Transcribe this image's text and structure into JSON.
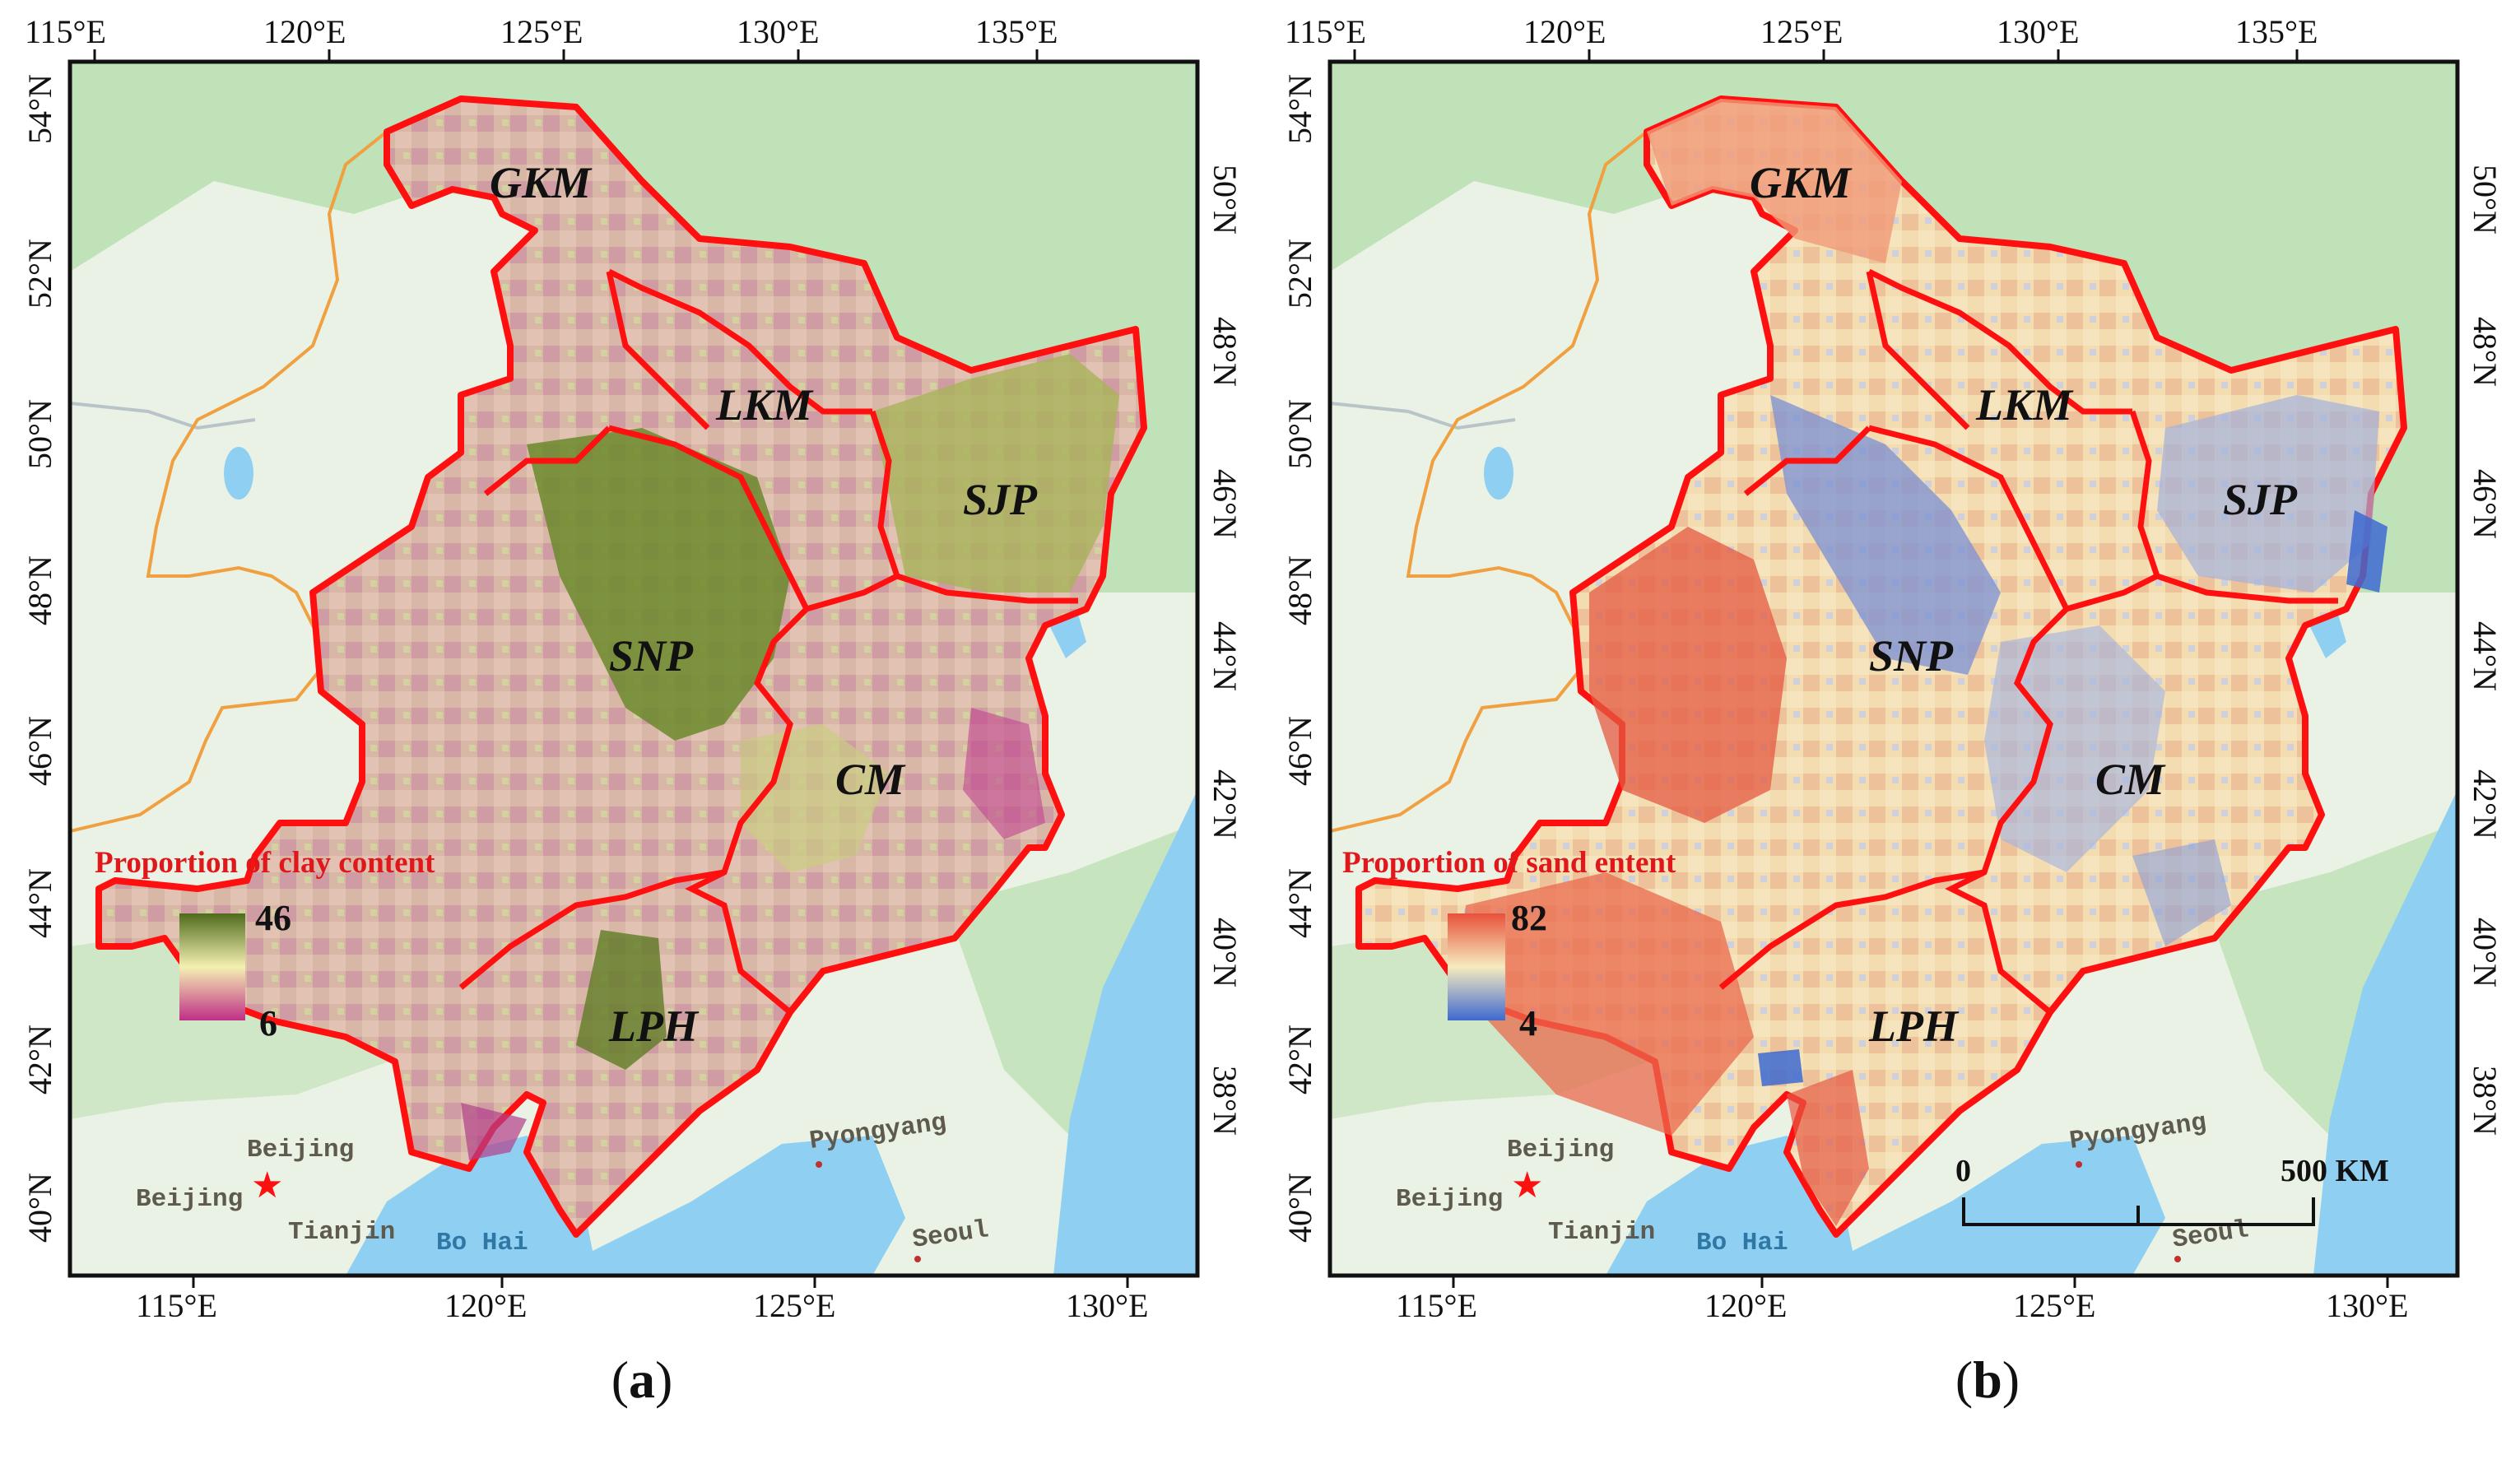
{
  "panels": [
    {
      "id": "a",
      "caption_letter": "a",
      "top_ticks": [
        "115°E",
        "120°E",
        "125°E",
        "130°E",
        "135°E"
      ],
      "bottom_ticks": [
        "115°E",
        "120°E",
        "125°E",
        "130°E"
      ],
      "left_ticks": [
        "54°N",
        "52°N",
        "50°N",
        "48°N",
        "46°N",
        "44°N",
        "42°N",
        "40°N"
      ],
      "right_ticks": [
        "50°N",
        "48°N",
        "46°N",
        "44°N",
        "42°N",
        "40°N",
        "38°N"
      ],
      "regions": [
        "GKM",
        "LKM",
        "SJP",
        "SNP",
        "CM",
        "LPH"
      ],
      "legend": {
        "title": "Proportion of clay content",
        "max": "46",
        "min": "6",
        "color_high": "#4f6b1c",
        "color_mid": "#f4f0b2",
        "color_low": "#c02f86"
      },
      "labels": {
        "beijing_1": "Beijing",
        "beijing_2": "Beijing",
        "tianjin": "Tianjin",
        "pyongyang": "Pyongyang",
        "seoul": "Seoul",
        "bohai": "Bo Hai"
      }
    },
    {
      "id": "b",
      "caption_letter": "b",
      "top_ticks": [
        "115°E",
        "120°E",
        "125°E",
        "130°E",
        "135°E"
      ],
      "bottom_ticks": [
        "115°E",
        "120°E",
        "125°E",
        "130°E"
      ],
      "left_ticks": [
        "54°N",
        "52°N",
        "50°N",
        "48°N",
        "46°N",
        "44°N",
        "42°N",
        "40°N"
      ],
      "right_ticks": [
        "50°N",
        "48°N",
        "46°N",
        "44°N",
        "42°N",
        "40°N",
        "38°N"
      ],
      "regions": [
        "GKM",
        "LKM",
        "SJP",
        "SNP",
        "CM",
        "LPH"
      ],
      "legend": {
        "title": "Proportion of  sand entent",
        "max": "82",
        "min": "4",
        "color_high": "#e8513a",
        "color_mid": "#f6ebbf",
        "color_low": "#3e6ad0"
      },
      "labels": {
        "beijing_1": "Beijing",
        "beijing_2": "Beijing",
        "tianjin": "Tianjin",
        "pyongyang": "Pyongyang",
        "seoul": "Seoul",
        "bohai": "Bo Hai"
      },
      "scale_bar": {
        "start": "0",
        "end": "500 KM"
      }
    }
  ],
  "colors": {
    "land": "#e9f2e4",
    "forest": "#bfe2b8",
    "sea": "#8fd0f2",
    "boundary": "#ff1010",
    "province_line": "#f0a040"
  }
}
